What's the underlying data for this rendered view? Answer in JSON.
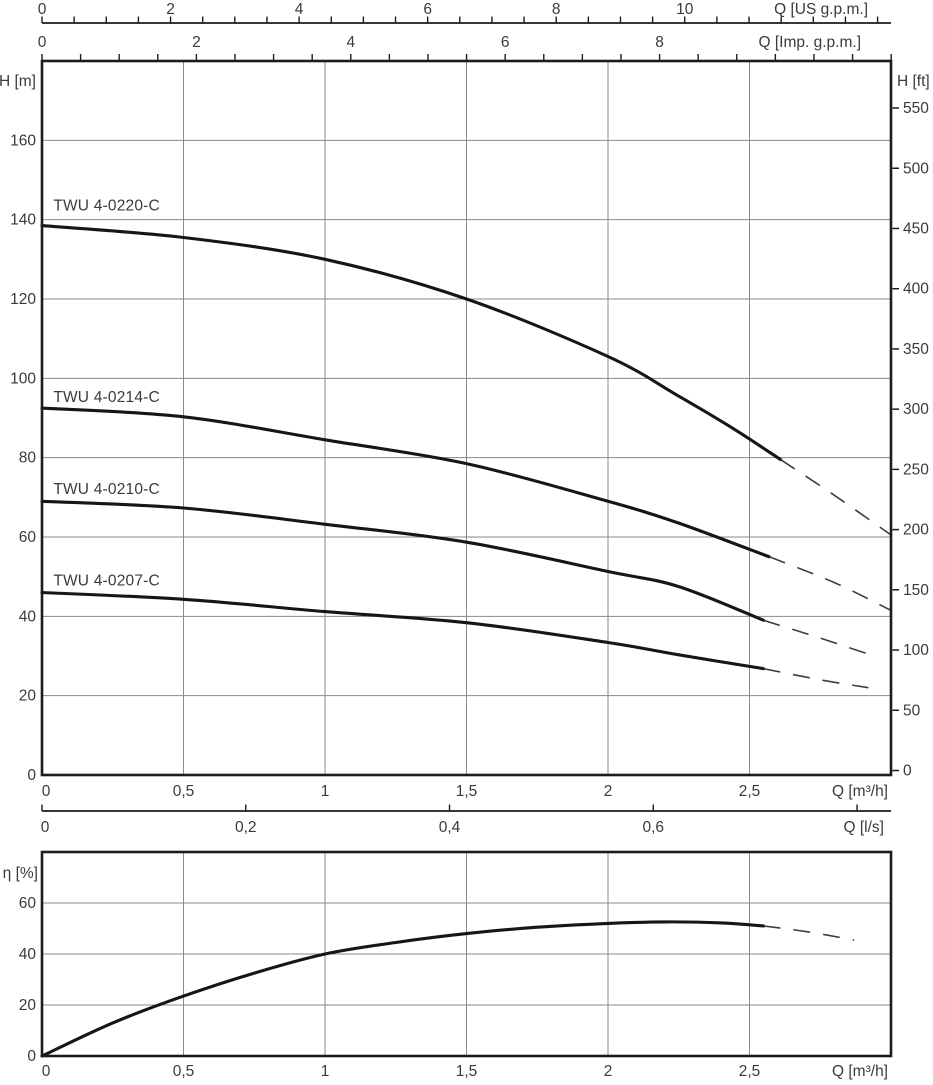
{
  "page": {
    "background": "#ffffff",
    "curve_color": "#161616",
    "grid_color": "#8a8a8a",
    "frame_color": "#1c1c1c",
    "text_color": "#3a3a3a"
  },
  "chart_data": [
    {
      "type": "line",
      "id": "pump-performance",
      "x_unit": "m3/h",
      "x_range": [
        0,
        3.0
      ],
      "grid": true,
      "x_gridline_step": 0.5,
      "axes": {
        "top_us": {
          "label": "Q [US g.p.m.]",
          "labeled_ticks": [
            0,
            2,
            4,
            6,
            8,
            10
          ],
          "tick_step": 0.5,
          "max": 13.2
        },
        "top_imp": {
          "label": "Q [Imp. g.p.m.]",
          "labeled_ticks": [
            0,
            2,
            4,
            6,
            8
          ],
          "tick_step": 0.5,
          "max": 11.0
        },
        "bottom_m3h": {
          "label": "Q [m³/h]",
          "labeled_ticks": [
            0,
            0.5,
            1,
            1.5,
            2,
            2.5
          ]
        },
        "bottom_ls": {
          "label": "Q [l/s]",
          "labeled_ticks": [
            0,
            0.2,
            0.4,
            0.6
          ],
          "tick_step": 0.2,
          "max": 0.83
        },
        "left": {
          "label": "H [m]",
          "labeled_ticks": [
            0,
            20,
            40,
            60,
            80,
            100,
            120,
            140,
            160
          ],
          "max": 180
        },
        "right": {
          "label": "H [ft]",
          "labeled_ticks": [
            0,
            50,
            100,
            150,
            200,
            250,
            300,
            350,
            400,
            450,
            500,
            550
          ]
        }
      },
      "series": [
        {
          "name": "TWU 4-0220-C",
          "label_anchor": [
            0.04,
            142.3
          ],
          "solid": [
            [
              0,
              138.5
            ],
            [
              0.5,
              135.5
            ],
            [
              1,
              130
            ],
            [
              1.5,
              120
            ],
            [
              2,
              105.5
            ],
            [
              2.25,
              95.5
            ],
            [
              2.45,
              87
            ],
            [
              2.61,
              79.5
            ]
          ],
          "dashed": [
            [
              2.61,
              79.5
            ],
            [
              2.8,
              70.5
            ],
            [
              3.0,
              60.5
            ]
          ]
        },
        {
          "name": "TWU 4-0214-C",
          "label_anchor": [
            0.04,
            94.0
          ],
          "solid": [
            [
              0,
              92.5
            ],
            [
              0.5,
              90.3
            ],
            [
              1,
              84.5
            ],
            [
              1.5,
              78.5
            ],
            [
              2,
              69
            ],
            [
              2.25,
              63.5
            ],
            [
              2.57,
              55
            ]
          ],
          "dashed": [
            [
              2.57,
              55
            ],
            [
              2.8,
              48.5
            ],
            [
              3.0,
              41.5
            ]
          ]
        },
        {
          "name": "TWU 4-0210-C",
          "label_anchor": [
            0.04,
            70.8
          ],
          "solid": [
            [
              0,
              69
            ],
            [
              0.5,
              67.3
            ],
            [
              1,
              63.2
            ],
            [
              1.5,
              58.7
            ],
            [
              2,
              51.3
            ],
            [
              2.25,
              47.5
            ],
            [
              2.55,
              39
            ]
          ],
          "dashed": [
            [
              2.55,
              39
            ],
            [
              2.75,
              34.5
            ],
            [
              2.92,
              30.5
            ]
          ]
        },
        {
          "name": "TWU 4-0207-C",
          "label_anchor": [
            0.04,
            47.8
          ],
          "solid": [
            [
              0,
              46
            ],
            [
              0.5,
              44.3
            ],
            [
              1,
              41.2
            ],
            [
              1.5,
              38.4
            ],
            [
              2,
              33.4
            ],
            [
              2.25,
              30.3
            ],
            [
              2.55,
              26.8
            ]
          ],
          "dashed": [
            [
              2.55,
              26.8
            ],
            [
              2.75,
              24
            ],
            [
              2.92,
              22
            ]
          ]
        }
      ]
    },
    {
      "type": "line",
      "id": "efficiency",
      "x_unit": "m3/h",
      "x_range": [
        0,
        3.0
      ],
      "grid": true,
      "x_gridline_step": 0.5,
      "axes": {
        "left": {
          "label": "η [%]",
          "labeled_ticks": [
            0,
            20,
            40,
            60
          ],
          "max": 80
        },
        "bottom_m3h": {
          "label": "Q [m³/h]",
          "labeled_ticks": [
            0,
            0.5,
            1,
            1.5,
            2,
            2.5
          ]
        }
      },
      "series": [
        {
          "name": "efficiency",
          "solid": [
            [
              0,
              0
            ],
            [
              0.25,
              13
            ],
            [
              0.5,
              23.5
            ],
            [
              0.75,
              32.5
            ],
            [
              1,
              40
            ],
            [
              1.25,
              44.5
            ],
            [
              1.5,
              48
            ],
            [
              1.75,
              50.5
            ],
            [
              2,
              52
            ],
            [
              2.2,
              52.6
            ],
            [
              2.4,
              52.2
            ],
            [
              2.55,
              51
            ]
          ],
          "dashed": [
            [
              2.55,
              51
            ],
            [
              2.7,
              48.8
            ],
            [
              2.87,
              45.5
            ]
          ]
        }
      ]
    }
  ],
  "decimal_separator": ","
}
